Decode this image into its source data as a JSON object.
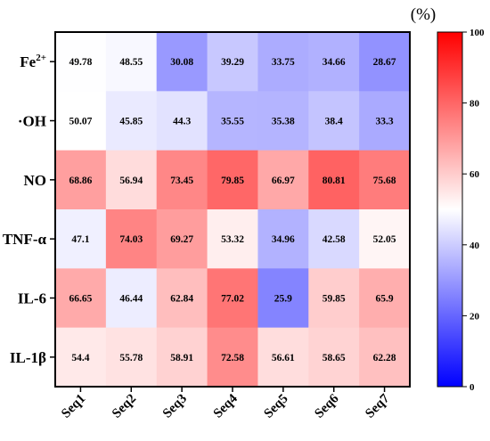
{
  "chart_data": {
    "type": "heatmap",
    "rows": [
      "Fe2+",
      "·OH",
      "NO",
      "TNF-α",
      "IL-6",
      "IL-1β"
    ],
    "columns": [
      "Seq1",
      "Seq2",
      "Seq3",
      "Seq4",
      "Seq5",
      "Seq6",
      "Seq7"
    ],
    "values": [
      [
        49.78,
        48.55,
        30.08,
        39.29,
        33.75,
        34.66,
        28.67
      ],
      [
        50.07,
        45.85,
        44.3,
        35.55,
        35.38,
        38.4,
        33.3
      ],
      [
        68.86,
        56.94,
        73.45,
        79.85,
        66.97,
        80.81,
        75.68
      ],
      [
        47.1,
        74.03,
        69.27,
        53.32,
        34.96,
        42.58,
        52.05
      ],
      [
        66.65,
        46.44,
        62.84,
        77.02,
        25.9,
        59.85,
        65.9
      ],
      [
        54.4,
        55.78,
        58.91,
        72.58,
        56.61,
        58.65,
        62.28
      ]
    ],
    "colorbar": {
      "label": "(%)",
      "min": 0,
      "max": 100,
      "ticks": [
        0,
        20,
        40,
        60,
        80,
        100
      ],
      "colors": {
        "low": "#0000ff",
        "mid": "#ffffff",
        "high": "#ff0000"
      }
    }
  }
}
